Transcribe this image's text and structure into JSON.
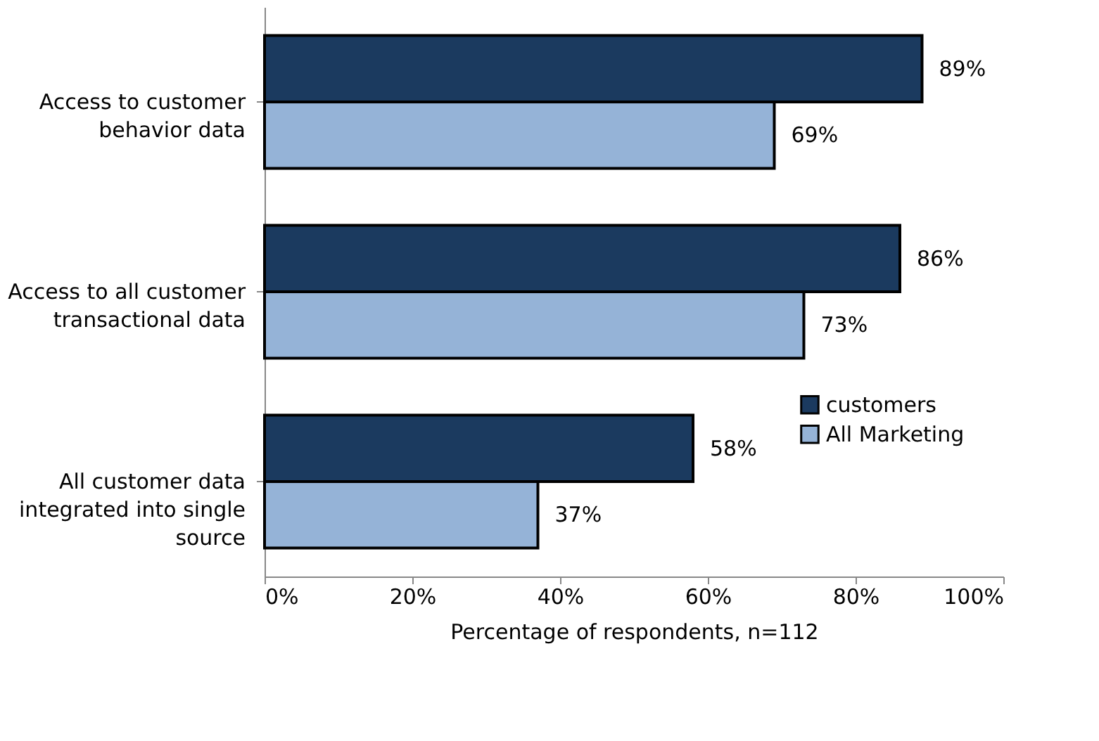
{
  "chart_data": {
    "type": "bar",
    "orientation": "horizontal",
    "categories": [
      "Access to customer\nbehavior data",
      "Access to all customer\ntransactional data",
      "All customer data\nintegrated into single\nsource"
    ],
    "series": [
      {
        "name": "customers",
        "color": "#1b3a5f",
        "values": [
          89,
          86,
          58
        ],
        "value_labels": [
          "89%",
          "86%",
          "58%"
        ]
      },
      {
        "name": "All Marketing",
        "color": "#95b3d7",
        "values": [
          69,
          73,
          37
        ],
        "value_labels": [
          "69%",
          "73%",
          "37%"
        ]
      }
    ],
    "xlabel": "Percentage of respondents, n=112",
    "xlim": [
      0,
      100
    ],
    "xticks": [
      {
        "value": 0,
        "label": "0%"
      },
      {
        "value": 20,
        "label": "20%"
      },
      {
        "value": 40,
        "label": "40%"
      },
      {
        "value": 60,
        "label": "60%"
      },
      {
        "value": 80,
        "label": "80%"
      },
      {
        "value": 100,
        "label": "100%"
      }
    ],
    "legend": "right",
    "grid": false
  }
}
